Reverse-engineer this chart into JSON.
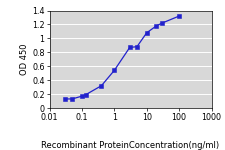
{
  "x_data": [
    0.03,
    0.05,
    0.1,
    0.13,
    0.4,
    1.0,
    3.0,
    5.0,
    10.0,
    20.0,
    30.0,
    100.0
  ],
  "y_data": [
    0.13,
    0.13,
    0.17,
    0.19,
    0.32,
    0.54,
    0.87,
    0.88,
    1.08,
    1.18,
    1.22,
    1.32
  ],
  "line_color": "#2222cc",
  "marker_color": "#2222cc",
  "marker_style": "s",
  "marker_size": 2.2,
  "xlabel": "Recombinant ProteinConcentration(ng/ml)",
  "ylabel": "OD 450",
  "xlim": [
    0.01,
    1000
  ],
  "ylim": [
    0,
    1.4
  ],
  "yticks": [
    0,
    0.2,
    0.4,
    0.6,
    0.8,
    1.0,
    1.2,
    1.4
  ],
  "xticks": [
    0.01,
    0.1,
    1,
    10,
    100,
    1000
  ],
  "xtick_labels": [
    "0.01",
    "0.1",
    "1",
    "10",
    "100",
    "1000"
  ],
  "background_color": "#d8d8d8",
  "grid_color": "#ffffff",
  "label_fontsize": 6.0,
  "tick_fontsize": 5.8,
  "linewidth": 0.9
}
